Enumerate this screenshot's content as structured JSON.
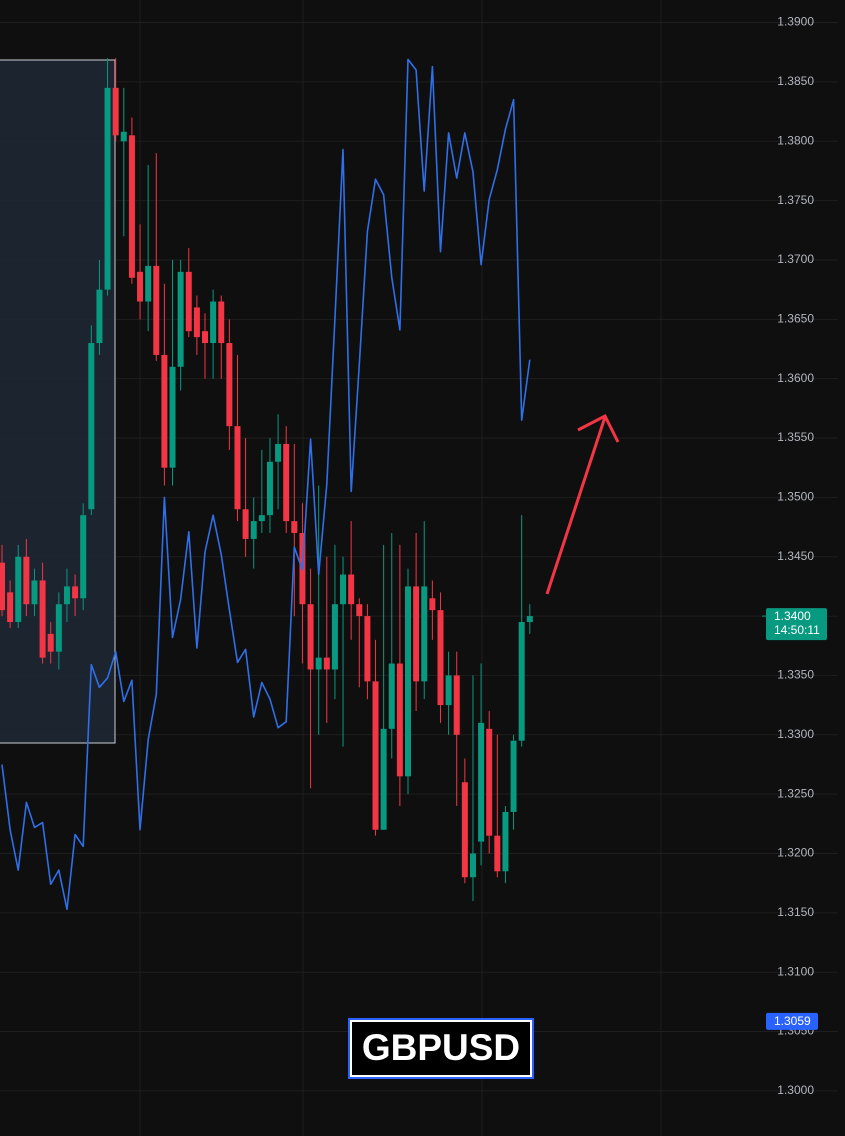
{
  "chart_data": {
    "type": "candlestick",
    "title": "GBPUSD",
    "ylim": [
      1.2962,
      1.3919
    ],
    "yticks": [
      {
        "value": 1.3,
        "label": "1.3000"
      },
      {
        "value": 1.305,
        "label": "1.3050"
      },
      {
        "value": 1.31,
        "label": "1.3100"
      },
      {
        "value": 1.315,
        "label": "1.3150"
      },
      {
        "value": 1.32,
        "label": "1.3200"
      },
      {
        "value": 1.325,
        "label": "1.3250"
      },
      {
        "value": 1.33,
        "label": "1.3300"
      },
      {
        "value": 1.335,
        "label": "1.3350"
      },
      {
        "value": 1.34,
        "label": "1.3400"
      },
      {
        "value": 1.345,
        "label": "1.3450"
      },
      {
        "value": 1.35,
        "label": "1.3500"
      },
      {
        "value": 1.355,
        "label": "1.3550"
      },
      {
        "value": 1.36,
        "label": "1.3600"
      },
      {
        "value": 1.365,
        "label": "1.3650"
      },
      {
        "value": 1.37,
        "label": "1.3700"
      },
      {
        "value": 1.375,
        "label": "1.3750"
      },
      {
        "value": 1.38,
        "label": "1.3800"
      },
      {
        "value": 1.385,
        "label": "1.3850"
      },
      {
        "value": 1.39,
        "label": "1.3900"
      }
    ],
    "grid": true,
    "up_color": "#089981",
    "down_color": "#f23645",
    "open": [
      1.3445,
      1.342,
      1.3395,
      1.345,
      1.341,
      1.343,
      1.3385,
      1.337,
      1.341,
      1.3425,
      1.3415,
      1.349,
      1.363,
      1.3675,
      1.3845,
      1.38,
      1.3805,
      1.369,
      1.3665,
      1.3695,
      1.362,
      1.3525,
      1.361,
      1.369,
      1.366,
      1.364,
      1.363,
      1.3665,
      1.363,
      1.356,
      1.349,
      1.3465,
      1.348,
      1.3485,
      1.353,
      1.3545,
      1.348,
      1.347,
      1.341,
      1.3355,
      1.3365,
      1.3355,
      1.341,
      1.3435,
      1.341,
      1.34,
      1.3345,
      1.322,
      1.3305,
      1.336,
      1.3265,
      1.3425,
      1.3345,
      1.3415,
      1.3405,
      1.3325,
      1.335,
      1.326,
      1.318,
      1.321,
      1.3305,
      1.3215,
      1.3185,
      1.3235,
      1.3295,
      1.3395
    ],
    "high": [
      1.346,
      1.343,
      1.346,
      1.3465,
      1.344,
      1.3445,
      1.3395,
      1.342,
      1.344,
      1.3435,
      1.3495,
      1.3645,
      1.37,
      1.387,
      1.387,
      1.3845,
      1.382,
      1.373,
      1.378,
      1.379,
      1.368,
      1.37,
      1.37,
      1.371,
      1.367,
      1.3655,
      1.3675,
      1.367,
      1.365,
      1.362,
      1.355,
      1.35,
      1.354,
      1.355,
      1.357,
      1.356,
      1.3545,
      1.3495,
      1.344,
      1.351,
      1.345,
      1.346,
      1.345,
      1.348,
      1.3415,
      1.341,
      1.338,
      1.346,
      1.347,
      1.346,
      1.344,
      1.347,
      1.348,
      1.343,
      1.342,
      1.337,
      1.337,
      1.328,
      1.335,
      1.336,
      1.332,
      1.33,
      1.324,
      1.33,
      1.3485,
      1.341
    ],
    "low": [
      1.34,
      1.339,
      1.339,
      1.34,
      1.34,
      1.336,
      1.336,
      1.3355,
      1.3395,
      1.34,
      1.3405,
      1.3485,
      1.362,
      1.367,
      1.38,
      1.372,
      1.368,
      1.365,
      1.364,
      1.3615,
      1.351,
      1.351,
      1.359,
      1.3635,
      1.362,
      1.36,
      1.36,
      1.36,
      1.354,
      1.348,
      1.345,
      1.344,
      1.347,
      1.347,
      1.349,
      1.347,
      1.34,
      1.336,
      1.3255,
      1.33,
      1.331,
      1.333,
      1.329,
      1.338,
      1.334,
      1.333,
      1.3215,
      1.322,
      1.328,
      1.324,
      1.325,
      1.332,
      1.333,
      1.338,
      1.331,
      1.33,
      1.324,
      1.3175,
      1.316,
      1.319,
      1.32,
      1.318,
      1.3175,
      1.322,
      1.329,
      1.3385
    ],
    "close": [
      1.3405,
      1.3395,
      1.345,
      1.341,
      1.343,
      1.3365,
      1.337,
      1.341,
      1.3425,
      1.3415,
      1.3485,
      1.363,
      1.3675,
      1.3845,
      1.3805,
      1.3808,
      1.3685,
      1.3665,
      1.3695,
      1.362,
      1.3525,
      1.361,
      1.369,
      1.364,
      1.3635,
      1.363,
      1.3665,
      1.363,
      1.356,
      1.349,
      1.3465,
      1.348,
      1.3485,
      1.353,
      1.3545,
      1.348,
      1.347,
      1.341,
      1.3355,
      1.3365,
      1.3355,
      1.341,
      1.3435,
      1.341,
      1.34,
      1.3345,
      1.322,
      1.3305,
      1.336,
      1.3265,
      1.3425,
      1.3345,
      1.3425,
      1.3405,
      1.3325,
      1.335,
      1.33,
      1.318,
      1.32,
      1.331,
      1.3215,
      1.3185,
      1.3235,
      1.3295,
      1.3395,
      1.34
    ],
    "overlay": {
      "color": "#2f6fe8",
      "values": [
        1.3275,
        1.322,
        1.3186,
        1.3243,
        1.3222,
        1.3226,
        1.3174,
        1.3186,
        1.3153,
        1.3216,
        1.3206,
        1.3359,
        1.334,
        1.3348,
        1.337,
        1.3328,
        1.3346,
        1.322,
        1.3296,
        1.3334,
        1.35,
        1.3382,
        1.3414,
        1.3471,
        1.3373,
        1.3454,
        1.3485,
        1.3452,
        1.3405,
        1.3361,
        1.3372,
        1.3315,
        1.3344,
        1.333,
        1.3306,
        1.3311,
        1.3458,
        1.3439,
        1.3549,
        1.3435,
        1.3511,
        1.365,
        1.3793,
        1.3505,
        1.3612,
        1.3724,
        1.3768,
        1.3755,
        1.3685,
        1.3641,
        1.3869,
        1.386,
        1.3758,
        1.3863,
        1.3707,
        1.3807,
        1.3769,
        1.3807,
        1.3774,
        1.3696,
        1.3751,
        1.3776,
        1.381,
        1.3835,
        1.3565,
        1.3616
      ]
    },
    "current_price": {
      "value": 1.34,
      "label": "1.3400",
      "countdown": "14:50:11",
      "color": "#089981"
    },
    "price_marker": {
      "value": 1.3059,
      "label": "1.3059",
      "color": "#2962ff"
    }
  }
}
